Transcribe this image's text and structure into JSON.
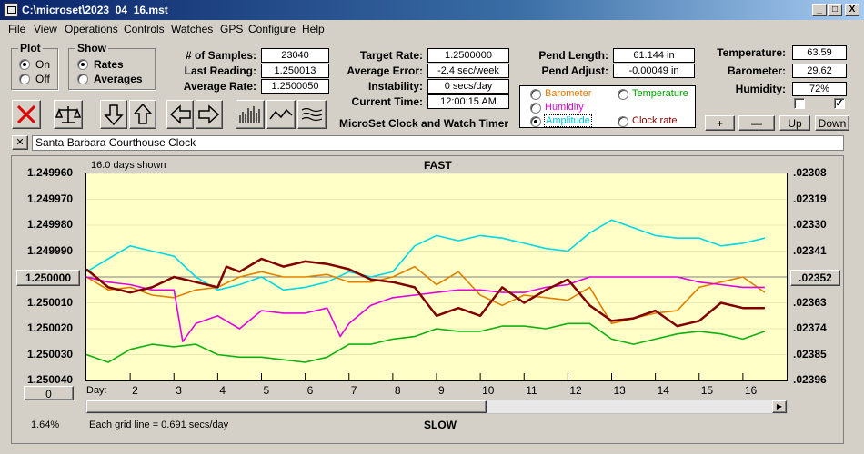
{
  "window": {
    "title": "C:\\microset\\2023_04_16.mst",
    "minimize_glyph": "_",
    "maximize_glyph": "□",
    "close_glyph": "X"
  },
  "menu": [
    "File",
    "View",
    "Operations",
    "Controls",
    "Watches",
    "GPS",
    "Configure",
    "Help"
  ],
  "plot_group": {
    "title": "Plot",
    "options": [
      "On",
      "Off"
    ],
    "selected": "On"
  },
  "show_group": {
    "title": "Show",
    "options": [
      "Rates",
      "Averages"
    ],
    "selected": "Rates"
  },
  "stats": {
    "samples_label": "# of Samples:",
    "samples_value": "23040",
    "last_reading_label": "Last Reading:",
    "last_reading_value": "1.250013",
    "average_rate_label": "Average Rate:",
    "average_rate_value": "1.2500050"
  },
  "rates": {
    "target_rate_label": "Target Rate:",
    "target_rate_value": "1.2500000",
    "average_error_label": "Average Error:",
    "average_error_value": "-2.4 sec/week",
    "instability_label": "Instability:",
    "instability_value": "0 secs/day",
    "current_time_label": "Current Time:",
    "current_time_value": "12:00:15 AM"
  },
  "pend": {
    "length_label": "Pend Length:",
    "length_value": "61.144 in",
    "adjust_label": "Pend Adjust:",
    "adjust_value": "-0.00049 in"
  },
  "env": {
    "temperature_label": "Temperature:",
    "temperature_value": "63.59",
    "barometer_label": "Barometer:",
    "barometer_value": "29.62",
    "humidity_label": "Humidity:",
    "humidity_value": "72%"
  },
  "app_caption": "MicroSet Clock and Watch Timer",
  "series_selector": {
    "options": [
      {
        "label": "Barometer",
        "color": "#e07800"
      },
      {
        "label": "Temperature",
        "color": "#00a000"
      },
      {
        "label": "Humidity",
        "color": "#e000e0"
      },
      {
        "label": "Amplitude",
        "color": "#00c8d8"
      },
      {
        "label": "Clock rate",
        "color": "#800000"
      }
    ],
    "selected": "Amplitude"
  },
  "adjust_buttons": {
    "plus": "+",
    "minus": "—",
    "up": "Up",
    "down": "Down"
  },
  "toolbar_icons": [
    "stop-icon",
    "balance-icon",
    "arrow-down-icon",
    "arrow-up-icon",
    "arrow-left-icon",
    "arrow-right-icon",
    "bars-icon",
    "wave-icon",
    "lines-icon"
  ],
  "clock_name": "Santa Barbara Courthouse Clock",
  "clear_glyph": "✕",
  "chart": {
    "days_shown": "16.0 days shown",
    "top_label": "FAST",
    "bottom_label": "SLOW",
    "grid_note": "Each grid line = 0.691 secs/day",
    "percent": "1.64%",
    "day_prefix": "Day:",
    "left_button": "1.250000",
    "right_button": ".02352",
    "zero_button": "0"
  },
  "chart_data": {
    "type": "line",
    "x_ticks": [
      "2",
      "3",
      "4",
      "5",
      "6",
      "7",
      "8",
      "9",
      "10",
      "11",
      "12",
      "13",
      "14",
      "15",
      "16"
    ],
    "xlim": [
      1,
      17
    ],
    "left_axis_ticks": [
      "1.249960",
      "1.249970",
      "1.249980",
      "1.249990",
      "1.250000",
      "1.250010",
      "1.250020",
      "1.250030",
      "1.250040"
    ],
    "right_axis_ticks": [
      ".02308",
      ".02319",
      ".02330",
      ".02341",
      ".02352",
      ".02363",
      ".02374",
      ".02385",
      ".02396"
    ],
    "series": [
      {
        "name": "Amplitude",
        "color": "#00d8e8",
        "x": [
          1,
          1.5,
          2,
          2.5,
          3,
          3.5,
          4,
          4.5,
          5,
          5.5,
          6,
          6.5,
          7,
          7.5,
          8,
          8.5,
          9,
          9.5,
          10,
          10.5,
          11,
          11.5,
          12,
          12.5,
          13,
          13.5,
          14,
          14.5,
          15,
          15.5,
          16,
          16.5
        ],
        "y": [
          1.249998,
          1.249993,
          1.249988,
          1.24999,
          1.249992,
          1.25,
          1.250005,
          1.250003,
          1.25,
          1.250005,
          1.250004,
          1.250002,
          1.249998,
          1.25,
          1.249998,
          1.249988,
          1.249984,
          1.249986,
          1.249984,
          1.249985,
          1.249987,
          1.249989,
          1.24999,
          1.249983,
          1.249978,
          1.249981,
          1.249984,
          1.249985,
          1.249985,
          1.249988,
          1.249987,
          1.249985
        ]
      },
      {
        "name": "Barometer",
        "color": "#e08000",
        "x": [
          1,
          1.5,
          2,
          2.5,
          3,
          3.5,
          4,
          4.5,
          5,
          5.5,
          6,
          6.5,
          7,
          7.5,
          8,
          8.5,
          9,
          9.5,
          10,
          10.5,
          11,
          11.5,
          12,
          12.5,
          13,
          13.5,
          14,
          14.5,
          15,
          15.5,
          16,
          16.5
        ],
        "y": [
          1.25,
          1.250005,
          1.250004,
          1.250007,
          1.250008,
          1.250005,
          1.250004,
          1.25,
          1.249998,
          1.25,
          1.25,
          1.249999,
          1.250002,
          1.250002,
          1.25,
          1.249996,
          1.250003,
          1.249998,
          1.250007,
          1.250011,
          1.250007,
          1.250008,
          1.250009,
          1.250004,
          1.250018,
          1.250016,
          1.250014,
          1.250013,
          1.250004,
          1.250002,
          1.25,
          1.250006
        ]
      },
      {
        "name": "Humidity",
        "color": "#e000e0",
        "x": [
          1,
          1.5,
          2,
          2.5,
          3,
          3.2,
          3.5,
          4,
          4.5,
          5,
          5.5,
          6,
          6.5,
          6.8,
          7,
          7.5,
          8,
          8.5,
          9,
          9.5,
          10,
          10.5,
          11,
          11.5,
          12,
          12.5,
          13,
          13.5,
          14,
          14.5,
          15,
          15.5,
          16,
          16.5
        ],
        "y": [
          1.25,
          1.250002,
          1.250003,
          1.250005,
          1.250005,
          1.250025,
          1.250018,
          1.250015,
          1.25002,
          1.250013,
          1.250014,
          1.250014,
          1.250012,
          1.250023,
          1.250018,
          1.250011,
          1.250008,
          1.250007,
          1.250006,
          1.250005,
          1.250005,
          1.250006,
          1.250006,
          1.250004,
          1.250003,
          1.25,
          1.25,
          1.25,
          1.25,
          1.25,
          1.250002,
          1.250003,
          1.250004,
          1.250004
        ]
      },
      {
        "name": "Temperature",
        "color": "#10b010",
        "x": [
          1,
          1.5,
          2,
          2.5,
          3,
          3.5,
          4,
          4.5,
          5,
          5.5,
          6,
          6.5,
          7,
          7.5,
          8,
          8.5,
          9,
          9.5,
          10,
          10.5,
          11,
          11.5,
          12,
          12.5,
          13,
          13.5,
          14,
          14.5,
          15,
          15.5,
          16,
          16.5
        ],
        "y": [
          1.25003,
          1.250033,
          1.250028,
          1.250026,
          1.250027,
          1.250026,
          1.25003,
          1.250031,
          1.250031,
          1.250032,
          1.250033,
          1.250031,
          1.250026,
          1.250026,
          1.250024,
          1.250023,
          1.25002,
          1.250021,
          1.250021,
          1.250019,
          1.250019,
          1.25002,
          1.250018,
          1.250018,
          1.250024,
          1.250026,
          1.250024,
          1.250022,
          1.250021,
          1.250022,
          1.250024,
          1.250021
        ]
      },
      {
        "name": "Clock rate",
        "color": "#800000",
        "x": [
          1,
          1.5,
          2,
          2.5,
          3,
          3.5,
          4,
          4.2,
          4.5,
          5,
          5.5,
          6,
          6.5,
          7,
          7.5,
          8,
          8.5,
          9,
          9.5,
          10,
          10.5,
          11,
          11.5,
          12,
          12.5,
          13,
          13.5,
          14,
          14.5,
          15,
          15.5,
          16,
          16.5
        ],
        "y": [
          1.249997,
          1.250004,
          1.250006,
          1.250004,
          1.25,
          1.250002,
          1.250004,
          1.249996,
          1.249998,
          1.249993,
          1.249996,
          1.249994,
          1.249995,
          1.249997,
          1.250001,
          1.250002,
          1.250004,
          1.250015,
          1.250012,
          1.250015,
          1.250004,
          1.25001,
          1.250005,
          1.250001,
          1.250011,
          1.250017,
          1.250016,
          1.250013,
          1.250019,
          1.250017,
          1.25001,
          1.250012,
          1.250012
        ]
      }
    ]
  }
}
